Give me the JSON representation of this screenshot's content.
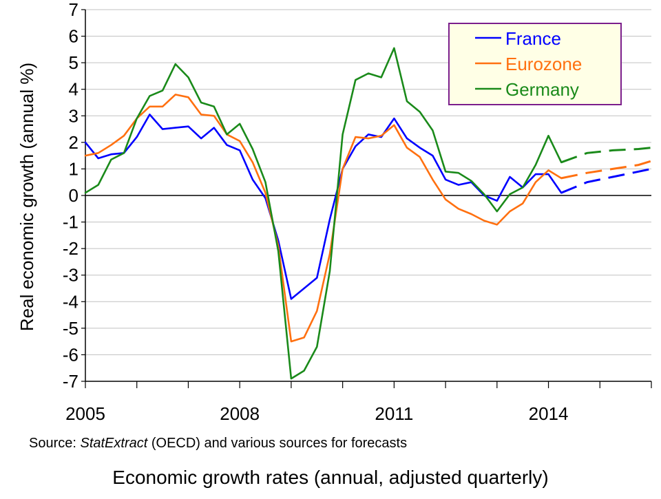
{
  "chart_data": {
    "type": "line",
    "title": "",
    "xlabel": "",
    "ylabel": "Real economic growth (annual %)",
    "ylim": [
      -7,
      7
    ],
    "yticks": [
      -7,
      -6,
      -5,
      -4,
      -3,
      -2,
      -1,
      0,
      1,
      2,
      3,
      4,
      5,
      6,
      7
    ],
    "xlim": [
      2005,
      2016
    ],
    "xtick_labels": [
      {
        "value": 2005,
        "label": "2005"
      },
      {
        "value": 2008,
        "label": "2008"
      },
      {
        "value": 2011,
        "label": "2011"
      },
      {
        "value": 2014,
        "label": "2014"
      }
    ],
    "x_minor_ticks": [
      2005,
      2006,
      2007,
      2008,
      2009,
      2010,
      2011,
      2012,
      2013,
      2014,
      2015,
      2016
    ],
    "grid": "horizontal",
    "legend_position": "top-right",
    "series": [
      {
        "name": "France",
        "color": "#0000ff",
        "actual": [
          [
            2005.0,
            2.0
          ],
          [
            2005.25,
            1.4
          ],
          [
            2005.5,
            1.55
          ],
          [
            2005.75,
            1.6
          ],
          [
            2006.0,
            2.2
          ],
          [
            2006.25,
            3.05
          ],
          [
            2006.5,
            2.5
          ],
          [
            2006.75,
            2.55
          ],
          [
            2007.0,
            2.6
          ],
          [
            2007.25,
            2.15
          ],
          [
            2007.5,
            2.55
          ],
          [
            2007.75,
            1.9
          ],
          [
            2008.0,
            1.7
          ],
          [
            2008.25,
            0.6
          ],
          [
            2008.5,
            -0.1
          ],
          [
            2008.75,
            -1.7
          ],
          [
            2009.0,
            -3.9
          ],
          [
            2009.25,
            -3.5
          ],
          [
            2009.5,
            -3.1
          ],
          [
            2009.75,
            -0.9
          ],
          [
            2010.0,
            1.0
          ],
          [
            2010.25,
            1.85
          ],
          [
            2010.5,
            2.3
          ],
          [
            2010.75,
            2.2
          ],
          [
            2011.0,
            2.9
          ],
          [
            2011.25,
            2.15
          ],
          [
            2011.5,
            1.8
          ],
          [
            2011.75,
            1.5
          ],
          [
            2012.0,
            0.6
          ],
          [
            2012.25,
            0.4
          ],
          [
            2012.5,
            0.5
          ],
          [
            2012.75,
            0.0
          ],
          [
            2013.0,
            -0.2
          ],
          [
            2013.25,
            0.7
          ],
          [
            2013.5,
            0.3
          ],
          [
            2013.75,
            0.8
          ],
          [
            2014.0,
            0.8
          ],
          [
            2014.25,
            0.1
          ]
        ],
        "forecast": [
          [
            2014.25,
            0.1
          ],
          [
            2014.75,
            0.5
          ],
          [
            2015.25,
            0.7
          ],
          [
            2015.75,
            0.9
          ],
          [
            2016.0,
            1.0
          ]
        ]
      },
      {
        "name": "Eurozone",
        "color": "#ff7010",
        "actual": [
          [
            2005.0,
            1.5
          ],
          [
            2005.25,
            1.6
          ],
          [
            2005.5,
            1.9
          ],
          [
            2005.75,
            2.25
          ],
          [
            2006.0,
            2.9
          ],
          [
            2006.25,
            3.35
          ],
          [
            2006.5,
            3.35
          ],
          [
            2006.75,
            3.8
          ],
          [
            2007.0,
            3.7
          ],
          [
            2007.25,
            3.05
          ],
          [
            2007.5,
            3.0
          ],
          [
            2007.75,
            2.3
          ],
          [
            2008.0,
            2.05
          ],
          [
            2008.25,
            1.25
          ],
          [
            2008.5,
            0.1
          ],
          [
            2008.75,
            -1.9
          ],
          [
            2009.0,
            -5.5
          ],
          [
            2009.25,
            -5.35
          ],
          [
            2009.5,
            -4.35
          ],
          [
            2009.75,
            -2.2
          ],
          [
            2010.0,
            1.0
          ],
          [
            2010.25,
            2.2
          ],
          [
            2010.5,
            2.15
          ],
          [
            2010.75,
            2.25
          ],
          [
            2011.0,
            2.65
          ],
          [
            2011.25,
            1.8
          ],
          [
            2011.5,
            1.45
          ],
          [
            2011.75,
            0.6
          ],
          [
            2012.0,
            -0.15
          ],
          [
            2012.25,
            -0.5
          ],
          [
            2012.5,
            -0.7
          ],
          [
            2012.75,
            -0.95
          ],
          [
            2013.0,
            -1.1
          ],
          [
            2013.25,
            -0.6
          ],
          [
            2013.5,
            -0.3
          ],
          [
            2013.75,
            0.5
          ],
          [
            2014.0,
            0.95
          ],
          [
            2014.25,
            0.65
          ]
        ],
        "forecast": [
          [
            2014.25,
            0.65
          ],
          [
            2014.75,
            0.85
          ],
          [
            2015.25,
            1.0
          ],
          [
            2015.75,
            1.15
          ],
          [
            2016.0,
            1.3
          ]
        ]
      },
      {
        "name": "Germany",
        "color": "#1a8a1a",
        "actual": [
          [
            2005.0,
            0.1
          ],
          [
            2005.25,
            0.4
          ],
          [
            2005.5,
            1.35
          ],
          [
            2005.75,
            1.6
          ],
          [
            2006.0,
            2.9
          ],
          [
            2006.25,
            3.75
          ],
          [
            2006.5,
            3.95
          ],
          [
            2006.75,
            4.95
          ],
          [
            2007.0,
            4.45
          ],
          [
            2007.25,
            3.5
          ],
          [
            2007.5,
            3.35
          ],
          [
            2007.75,
            2.3
          ],
          [
            2008.0,
            2.7
          ],
          [
            2008.25,
            1.75
          ],
          [
            2008.5,
            0.5
          ],
          [
            2008.75,
            -2.1
          ],
          [
            2009.0,
            -6.9
          ],
          [
            2009.25,
            -6.6
          ],
          [
            2009.5,
            -5.7
          ],
          [
            2009.75,
            -2.85
          ],
          [
            2010.0,
            2.3
          ],
          [
            2010.25,
            4.35
          ],
          [
            2010.5,
            4.6
          ],
          [
            2010.75,
            4.45
          ],
          [
            2011.0,
            5.55
          ],
          [
            2011.25,
            3.55
          ],
          [
            2011.5,
            3.15
          ],
          [
            2011.75,
            2.45
          ],
          [
            2012.0,
            0.9
          ],
          [
            2012.25,
            0.85
          ],
          [
            2012.5,
            0.55
          ],
          [
            2012.75,
            0.05
          ],
          [
            2013.0,
            -0.6
          ],
          [
            2013.25,
            0.05
          ],
          [
            2013.5,
            0.3
          ],
          [
            2013.75,
            1.15
          ],
          [
            2014.0,
            2.25
          ],
          [
            2014.25,
            1.25
          ]
        ],
        "forecast": [
          [
            2014.25,
            1.25
          ],
          [
            2014.75,
            1.6
          ],
          [
            2015.25,
            1.7
          ],
          [
            2015.75,
            1.75
          ],
          [
            2016.0,
            1.8
          ]
        ]
      }
    ]
  },
  "source": {
    "prefix": "Source: ",
    "emphasis": "StatExtract",
    "suffix": " (OECD) and various sources for forecasts"
  },
  "caption": "Economic growth rates (annual, adjusted quarterly)",
  "colors": {
    "legend_border": "#7b1e8c",
    "legend_background": "#ffffe6",
    "grid": "#000000",
    "zero_line": "#000000"
  }
}
